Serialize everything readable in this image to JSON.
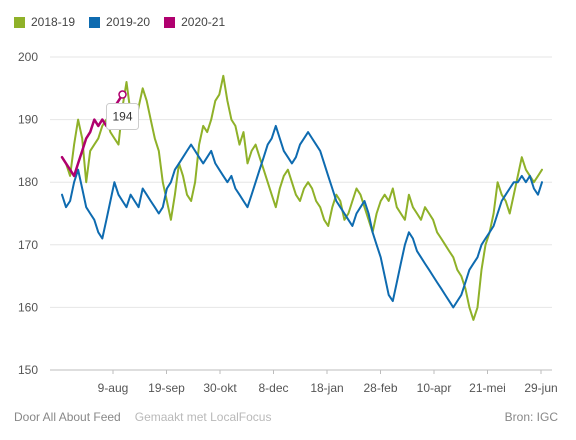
{
  "chart_data": {
    "type": "line",
    "y_ticks": [
      150,
      160,
      170,
      180,
      190,
      200
    ],
    "ylim": [
      150,
      200
    ],
    "x_ticks": [
      "9-aug",
      "19-sep",
      "30-okt",
      "8-dec",
      "18-jan",
      "28-feb",
      "10-apr",
      "21-mei",
      "29-jun"
    ],
    "grid": true,
    "legend_position": "top-left",
    "series": [
      {
        "name": "2018-19",
        "color": "#8fb129",
        "points": [
          [
            0,
            184
          ],
          [
            1,
            183
          ],
          [
            2,
            181
          ],
          [
            3,
            186
          ],
          [
            4,
            190
          ],
          [
            5,
            187
          ],
          [
            6,
            180
          ],
          [
            7,
            185
          ],
          [
            8,
            186
          ],
          [
            9,
            187
          ],
          [
            10,
            189
          ],
          [
            11,
            190
          ],
          [
            12,
            188
          ],
          [
            13,
            187
          ],
          [
            14,
            186
          ],
          [
            15,
            192
          ],
          [
            16,
            196
          ],
          [
            17,
            191
          ],
          [
            18,
            189
          ],
          [
            19,
            192
          ],
          [
            20,
            195
          ],
          [
            21,
            193
          ],
          [
            22,
            190
          ],
          [
            23,
            187
          ],
          [
            24,
            185
          ],
          [
            25,
            180
          ],
          [
            26,
            177
          ],
          [
            27,
            174
          ],
          [
            28,
            178
          ],
          [
            29,
            183
          ],
          [
            30,
            181
          ],
          [
            31,
            178
          ],
          [
            32,
            177
          ],
          [
            33,
            180
          ],
          [
            34,
            186
          ],
          [
            35,
            189
          ],
          [
            36,
            188
          ],
          [
            37,
            190
          ],
          [
            38,
            193
          ],
          [
            39,
            194
          ],
          [
            40,
            197
          ],
          [
            41,
            193
          ],
          [
            42,
            190
          ],
          [
            43,
            189
          ],
          [
            44,
            186
          ],
          [
            45,
            188
          ],
          [
            46,
            183
          ],
          [
            47,
            185
          ],
          [
            48,
            186
          ],
          [
            49,
            184
          ],
          [
            50,
            182
          ],
          [
            51,
            180
          ],
          [
            52,
            178
          ],
          [
            53,
            176
          ],
          [
            54,
            179
          ],
          [
            55,
            181
          ],
          [
            56,
            182
          ],
          [
            57,
            180
          ],
          [
            58,
            178
          ],
          [
            59,
            177
          ],
          [
            60,
            179
          ],
          [
            61,
            180
          ],
          [
            62,
            179
          ],
          [
            63,
            177
          ],
          [
            64,
            176
          ],
          [
            65,
            174
          ],
          [
            66,
            173
          ],
          [
            67,
            176
          ],
          [
            68,
            178
          ],
          [
            69,
            177
          ],
          [
            70,
            174
          ],
          [
            71,
            175
          ],
          [
            72,
            177
          ],
          [
            73,
            179
          ],
          [
            74,
            178
          ],
          [
            75,
            176
          ],
          [
            76,
            174
          ],
          [
            77,
            172
          ],
          [
            78,
            175
          ],
          [
            79,
            177
          ],
          [
            80,
            178
          ],
          [
            81,
            177
          ],
          [
            82,
            179
          ],
          [
            83,
            176
          ],
          [
            84,
            175
          ],
          [
            85,
            174
          ],
          [
            86,
            178
          ],
          [
            87,
            176
          ],
          [
            88,
            175
          ],
          [
            89,
            174
          ],
          [
            90,
            176
          ],
          [
            91,
            175
          ],
          [
            92,
            174
          ],
          [
            93,
            172
          ],
          [
            94,
            171
          ],
          [
            95,
            170
          ],
          [
            96,
            169
          ],
          [
            97,
            168
          ],
          [
            98,
            166
          ],
          [
            99,
            165
          ],
          [
            100,
            163
          ],
          [
            101,
            160
          ],
          [
            102,
            158
          ],
          [
            103,
            160
          ],
          [
            104,
            166
          ],
          [
            105,
            170
          ],
          [
            106,
            172
          ],
          [
            107,
            175
          ],
          [
            108,
            180
          ],
          [
            109,
            178
          ],
          [
            110,
            177
          ],
          [
            111,
            175
          ],
          [
            112,
            178
          ],
          [
            113,
            181
          ],
          [
            114,
            184
          ],
          [
            115,
            182
          ],
          [
            116,
            181
          ],
          [
            117,
            180
          ],
          [
            118,
            181
          ],
          [
            119,
            182
          ]
        ]
      },
      {
        "name": "2019-20",
        "color": "#0e6bb0",
        "points": [
          [
            0,
            178
          ],
          [
            1,
            176
          ],
          [
            2,
            177
          ],
          [
            3,
            180
          ],
          [
            4,
            182
          ],
          [
            5,
            179
          ],
          [
            6,
            176
          ],
          [
            7,
            175
          ],
          [
            8,
            174
          ],
          [
            9,
            172
          ],
          [
            10,
            171
          ],
          [
            11,
            174
          ],
          [
            12,
            177
          ],
          [
            13,
            180
          ],
          [
            14,
            178
          ],
          [
            15,
            177
          ],
          [
            16,
            176
          ],
          [
            17,
            178
          ],
          [
            18,
            177
          ],
          [
            19,
            176
          ],
          [
            20,
            179
          ],
          [
            21,
            178
          ],
          [
            22,
            177
          ],
          [
            23,
            176
          ],
          [
            24,
            175
          ],
          [
            25,
            176
          ],
          [
            26,
            179
          ],
          [
            27,
            180
          ],
          [
            28,
            182
          ],
          [
            29,
            183
          ],
          [
            30,
            184
          ],
          [
            31,
            185
          ],
          [
            32,
            186
          ],
          [
            33,
            185
          ],
          [
            34,
            184
          ],
          [
            35,
            183
          ],
          [
            36,
            184
          ],
          [
            37,
            185
          ],
          [
            38,
            183
          ],
          [
            39,
            182
          ],
          [
            40,
            181
          ],
          [
            41,
            180
          ],
          [
            42,
            181
          ],
          [
            43,
            179
          ],
          [
            44,
            178
          ],
          [
            45,
            177
          ],
          [
            46,
            176
          ],
          [
            47,
            178
          ],
          [
            48,
            180
          ],
          [
            49,
            182
          ],
          [
            50,
            184
          ],
          [
            51,
            186
          ],
          [
            52,
            187
          ],
          [
            53,
            189
          ],
          [
            54,
            187
          ],
          [
            55,
            185
          ],
          [
            56,
            184
          ],
          [
            57,
            183
          ],
          [
            58,
            184
          ],
          [
            59,
            186
          ],
          [
            60,
            187
          ],
          [
            61,
            188
          ],
          [
            62,
            187
          ],
          [
            63,
            186
          ],
          [
            64,
            185
          ],
          [
            65,
            183
          ],
          [
            66,
            181
          ],
          [
            67,
            179
          ],
          [
            68,
            177
          ],
          [
            69,
            176
          ],
          [
            70,
            175
          ],
          [
            71,
            174
          ],
          [
            72,
            173
          ],
          [
            73,
            175
          ],
          [
            74,
            176
          ],
          [
            75,
            177
          ],
          [
            76,
            175
          ],
          [
            77,
            172
          ],
          [
            78,
            170
          ],
          [
            79,
            168
          ],
          [
            80,
            165
          ],
          [
            81,
            162
          ],
          [
            82,
            161
          ],
          [
            83,
            164
          ],
          [
            84,
            167
          ],
          [
            85,
            170
          ],
          [
            86,
            172
          ],
          [
            87,
            171
          ],
          [
            88,
            169
          ],
          [
            89,
            168
          ],
          [
            90,
            167
          ],
          [
            91,
            166
          ],
          [
            92,
            165
          ],
          [
            93,
            164
          ],
          [
            94,
            163
          ],
          [
            95,
            162
          ],
          [
            96,
            161
          ],
          [
            97,
            160
          ],
          [
            98,
            161
          ],
          [
            99,
            162
          ],
          [
            100,
            164
          ],
          [
            101,
            166
          ],
          [
            102,
            167
          ],
          [
            103,
            168
          ],
          [
            104,
            170
          ],
          [
            105,
            171
          ],
          [
            106,
            172
          ],
          [
            107,
            173
          ],
          [
            108,
            175
          ],
          [
            109,
            177
          ],
          [
            110,
            178
          ],
          [
            111,
            179
          ],
          [
            112,
            180
          ],
          [
            113,
            180
          ],
          [
            114,
            181
          ],
          [
            115,
            180
          ],
          [
            116,
            181
          ],
          [
            117,
            179
          ],
          [
            118,
            178
          ],
          [
            119,
            180
          ]
        ]
      },
      {
        "name": "2020-21",
        "color": "#b0006f",
        "points": [
          [
            0,
            184
          ],
          [
            1,
            183
          ],
          [
            2,
            182
          ],
          [
            3,
            181
          ],
          [
            4,
            183
          ],
          [
            5,
            185
          ],
          [
            6,
            187
          ],
          [
            7,
            188
          ],
          [
            8,
            190
          ],
          [
            9,
            189
          ],
          [
            10,
            190
          ],
          [
            11,
            189
          ],
          [
            12,
            191
          ],
          [
            13,
            192
          ],
          [
            14,
            193
          ],
          [
            15,
            194
          ]
        ]
      }
    ],
    "tooltip": {
      "value": "194"
    }
  },
  "footer": {
    "source_link": "Door All About Feed",
    "made_with": "Gemaakt met LocalFocus",
    "credit": "Bron:  IGC"
  }
}
